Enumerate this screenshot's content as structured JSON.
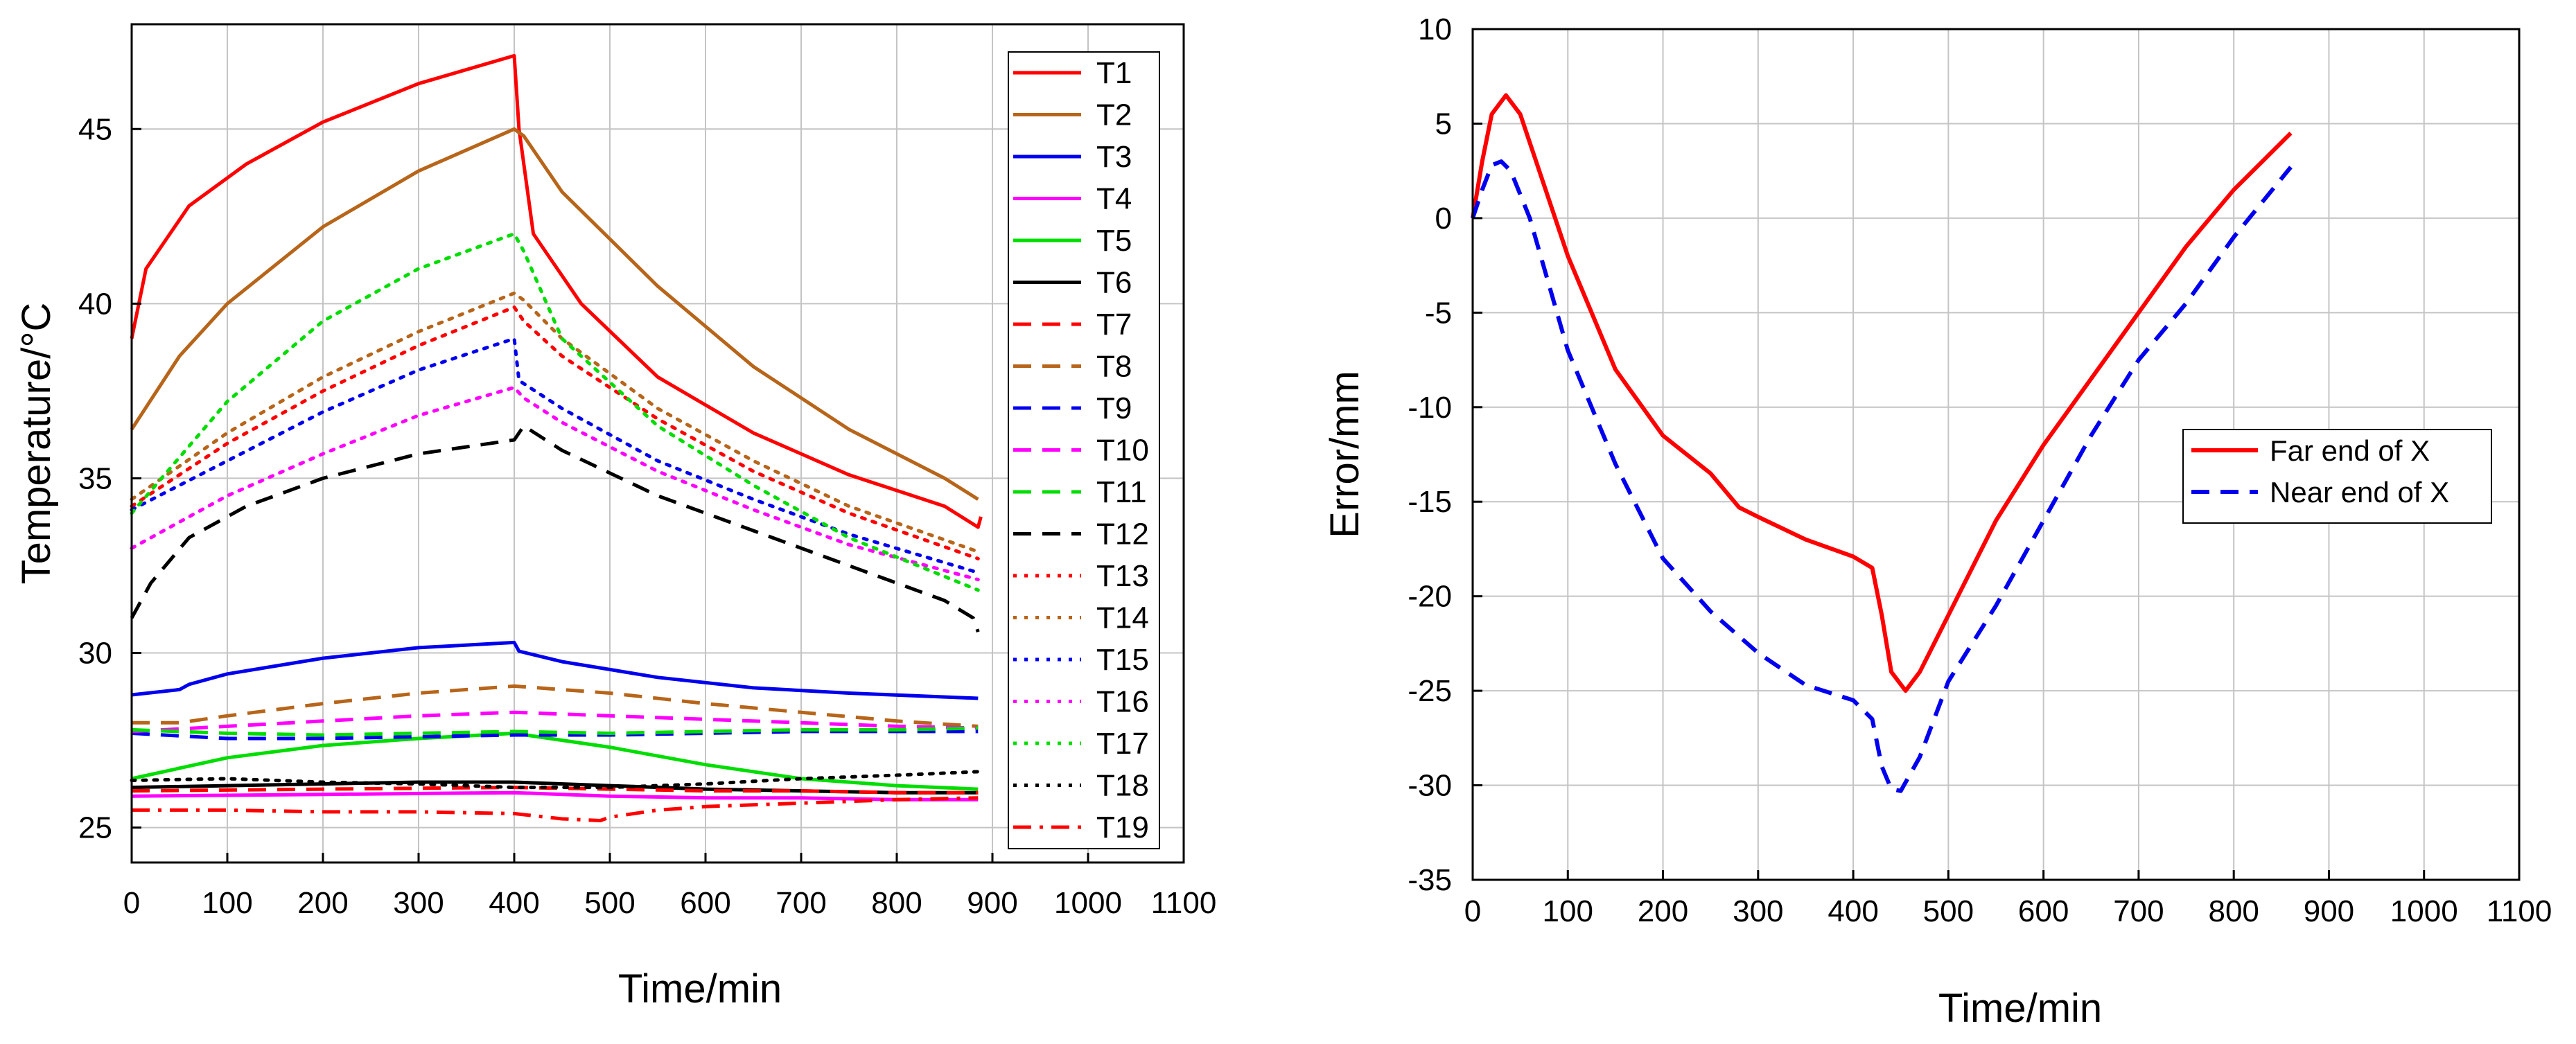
{
  "chart_data": [
    {
      "type": "line",
      "xlabel": "Time/min",
      "ylabel": "Temperature/°C",
      "xlim": [
        0,
        1100
      ],
      "ylim": [
        24,
        48
      ],
      "xticks": [
        "0",
        "100",
        "200",
        "300",
        "400",
        "500",
        "600",
        "700",
        "800",
        "900",
        "1000",
        "1100"
      ],
      "yticks": [
        "25",
        "30",
        "35",
        "40",
        "45"
      ],
      "grid": true,
      "legend_position": "right",
      "series": [
        {
          "name": "T1",
          "color": "#ff0000",
          "style": "solid",
          "x": [
            0,
            15,
            60,
            120,
            200,
            300,
            400,
            405,
            420,
            470,
            550,
            650,
            750,
            850,
            885,
            888
          ],
          "values": [
            39,
            41,
            42.8,
            44,
            45.2,
            46.3,
            47.1,
            45,
            42,
            40,
            37.9,
            36.3,
            35.1,
            34.2,
            33.6,
            33.9
          ]
        },
        {
          "name": "T2",
          "color": "#b7651a",
          "style": "solid",
          "x": [
            0,
            50,
            100,
            200,
            300,
            400,
            410,
            450,
            550,
            650,
            750,
            850,
            885
          ],
          "values": [
            36.4,
            38.5,
            40,
            42.2,
            43.8,
            45,
            44.8,
            43.2,
            40.5,
            38.2,
            36.4,
            35,
            34.4
          ]
        },
        {
          "name": "T3",
          "color": "#0000ee",
          "style": "solid",
          "x": [
            0,
            50,
            60,
            100,
            200,
            300,
            400,
            405,
            450,
            550,
            650,
            750,
            885
          ],
          "values": [
            28.8,
            28.95,
            29.1,
            29.4,
            29.85,
            30.15,
            30.3,
            30.05,
            29.75,
            29.3,
            29,
            28.85,
            28.7
          ]
        },
        {
          "name": "T4",
          "color": "#ff00ff",
          "style": "solid",
          "x": [
            0,
            200,
            400,
            500,
            600,
            700,
            800,
            885
          ],
          "values": [
            25.9,
            25.95,
            26,
            25.9,
            25.85,
            25.85,
            25.8,
            25.8
          ]
        },
        {
          "name": "T5",
          "color": "#00dd00",
          "style": "solid",
          "x": [
            0,
            100,
            200,
            300,
            400,
            500,
            600,
            700,
            800,
            885
          ],
          "values": [
            26.4,
            27,
            27.35,
            27.55,
            27.7,
            27.3,
            26.8,
            26.4,
            26.2,
            26.1
          ]
        },
        {
          "name": "T6",
          "color": "#000000",
          "style": "solid",
          "x": [
            0,
            100,
            200,
            300,
            400,
            500,
            600,
            700,
            800,
            885
          ],
          "values": [
            26.15,
            26.2,
            26.25,
            26.3,
            26.3,
            26.2,
            26.1,
            26.05,
            26,
            26
          ]
        },
        {
          "name": "T7",
          "color": "#ff0000",
          "style": "dash",
          "x": [
            0,
            200,
            400,
            500,
            600,
            700,
            800,
            885
          ],
          "values": [
            26.05,
            26.1,
            26.15,
            26.1,
            26.05,
            26.05,
            26,
            26
          ]
        },
        {
          "name": "T8",
          "color": "#b7651a",
          "style": "dash",
          "x": [
            0,
            50,
            100,
            200,
            300,
            400,
            500,
            600,
            700,
            800,
            885
          ],
          "values": [
            28,
            28,
            28.2,
            28.55,
            28.85,
            29.05,
            28.85,
            28.55,
            28.3,
            28.05,
            27.9
          ]
        },
        {
          "name": "T9",
          "color": "#0000ee",
          "style": "dash",
          "x": [
            0,
            100,
            200,
            300,
            400,
            500,
            600,
            700,
            800,
            885
          ],
          "values": [
            27.7,
            27.55,
            27.55,
            27.6,
            27.65,
            27.65,
            27.7,
            27.75,
            27.75,
            27.75
          ]
        },
        {
          "name": "T10",
          "color": "#ff00ff",
          "style": "dash",
          "x": [
            0,
            100,
            200,
            300,
            400,
            500,
            600,
            700,
            800,
            885
          ],
          "values": [
            27.75,
            27.9,
            28.05,
            28.2,
            28.3,
            28.2,
            28.1,
            28,
            27.9,
            27.85
          ]
        },
        {
          "name": "T11",
          "color": "#00dd00",
          "style": "dash",
          "x": [
            0,
            100,
            200,
            300,
            400,
            500,
            600,
            700,
            800,
            885
          ],
          "values": [
            27.8,
            27.7,
            27.65,
            27.7,
            27.75,
            27.7,
            27.75,
            27.8,
            27.8,
            27.85
          ]
        },
        {
          "name": "T12",
          "color": "#000000",
          "style": "dash",
          "x": [
            0,
            20,
            60,
            120,
            200,
            300,
            400,
            410,
            450,
            550,
            650,
            750,
            850,
            880,
            885
          ],
          "values": [
            31,
            32,
            33.3,
            34.2,
            35,
            35.7,
            36.1,
            36.5,
            35.8,
            34.5,
            33.5,
            32.5,
            31.5,
            31,
            30.6
          ]
        },
        {
          "name": "T13",
          "color": "#ff0000",
          "style": "dot",
          "x": [
            0,
            100,
            200,
            300,
            400,
            410,
            450,
            550,
            650,
            750,
            885
          ],
          "values": [
            34.2,
            36,
            37.5,
            38.8,
            39.9,
            39.5,
            38.5,
            36.7,
            35.2,
            34,
            32.7
          ]
        },
        {
          "name": "T14",
          "color": "#b7651a",
          "style": "dot",
          "x": [
            0,
            100,
            200,
            300,
            400,
            410,
            450,
            550,
            650,
            750,
            885
          ],
          "values": [
            34.4,
            36.3,
            37.9,
            39.2,
            40.3,
            40.1,
            39,
            37,
            35.5,
            34.2,
            32.9
          ]
        },
        {
          "name": "T15",
          "color": "#0000ee",
          "style": "dot",
          "x": [
            0,
            100,
            200,
            300,
            400,
            405,
            450,
            550,
            650,
            750,
            885
          ],
          "values": [
            34.1,
            35.5,
            36.9,
            38.1,
            39,
            37.8,
            37,
            35.5,
            34.4,
            33.4,
            32.3
          ]
        },
        {
          "name": "T16",
          "color": "#ff00ff",
          "style": "dot",
          "x": [
            0,
            100,
            200,
            300,
            400,
            410,
            450,
            550,
            650,
            750,
            885
          ],
          "values": [
            33,
            34.5,
            35.7,
            36.8,
            37.6,
            37.3,
            36.6,
            35.2,
            34.1,
            33.1,
            32.1
          ]
        },
        {
          "name": "T17",
          "color": "#00dd00",
          "style": "dot",
          "x": [
            0,
            100,
            200,
            300,
            400,
            410,
            450,
            550,
            650,
            750,
            885
          ],
          "values": [
            34,
            37.2,
            39.5,
            41,
            42,
            41.5,
            39,
            36.5,
            34.8,
            33.3,
            31.8
          ]
        },
        {
          "name": "T18",
          "color": "#000000",
          "style": "dot",
          "x": [
            0,
            100,
            200,
            300,
            400,
            500,
            600,
            700,
            800,
            885
          ],
          "values": [
            26.35,
            26.4,
            26.3,
            26.25,
            26.15,
            26.15,
            26.25,
            26.4,
            26.5,
            26.6
          ]
        },
        {
          "name": "T19",
          "color": "#ff0000",
          "style": "dashdot",
          "x": [
            0,
            100,
            200,
            300,
            400,
            450,
            490,
            500,
            550,
            600,
            700,
            800,
            885
          ],
          "values": [
            25.5,
            25.5,
            25.45,
            25.45,
            25.4,
            25.25,
            25.2,
            25.3,
            25.5,
            25.6,
            25.7,
            25.8,
            25.85
          ]
        }
      ]
    },
    {
      "type": "line",
      "xlabel": "Time/min",
      "ylabel": "Error/mm",
      "xlim": [
        0,
        1100
      ],
      "ylim": [
        -35,
        10
      ],
      "xticks": [
        "0",
        "100",
        "200",
        "300",
        "400",
        "500",
        "600",
        "700",
        "800",
        "900",
        "1000",
        "1100"
      ],
      "yticks": [
        "10",
        "5",
        "0",
        "-5",
        "-10",
        "-15",
        "-20",
        "-25",
        "-30",
        "-35"
      ],
      "grid": true,
      "legend_position": "right",
      "series": [
        {
          "name": "Far end of X",
          "color": "#ff0000",
          "style": "solid",
          "x": [
            0,
            10,
            20,
            35,
            50,
            70,
            100,
            150,
            200,
            250,
            280,
            300,
            350,
            400,
            420,
            430,
            440,
            455,
            470,
            500,
            550,
            600,
            650,
            700,
            750,
            800,
            860
          ],
          "values": [
            0,
            3,
            5.5,
            6.5,
            5.5,
            2.5,
            -2,
            -8,
            -11.5,
            -13.5,
            -15.3,
            -15.8,
            -17,
            -17.9,
            -18.5,
            -21,
            -24,
            -25,
            -24,
            -21,
            -16,
            -12,
            -8.5,
            -5,
            -1.5,
            1.5,
            4.5
          ]
        },
        {
          "name": "Near end of X",
          "color": "#0000ee",
          "style": "dash",
          "x": [
            0,
            10,
            20,
            30,
            40,
            60,
            100,
            150,
            200,
            250,
            300,
            350,
            400,
            420,
            430,
            440,
            450,
            470,
            500,
            550,
            600,
            650,
            700,
            750,
            800,
            860
          ],
          "values": [
            0,
            1.5,
            2.8,
            3,
            2.5,
            0,
            -7,
            -13,
            -18,
            -20.8,
            -23,
            -24.7,
            -25.5,
            -26.5,
            -29,
            -30.2,
            -30.3,
            -28.5,
            -24.5,
            -20.5,
            -16,
            -11.5,
            -7.5,
            -4.5,
            -1,
            2.7
          ]
        }
      ]
    }
  ]
}
